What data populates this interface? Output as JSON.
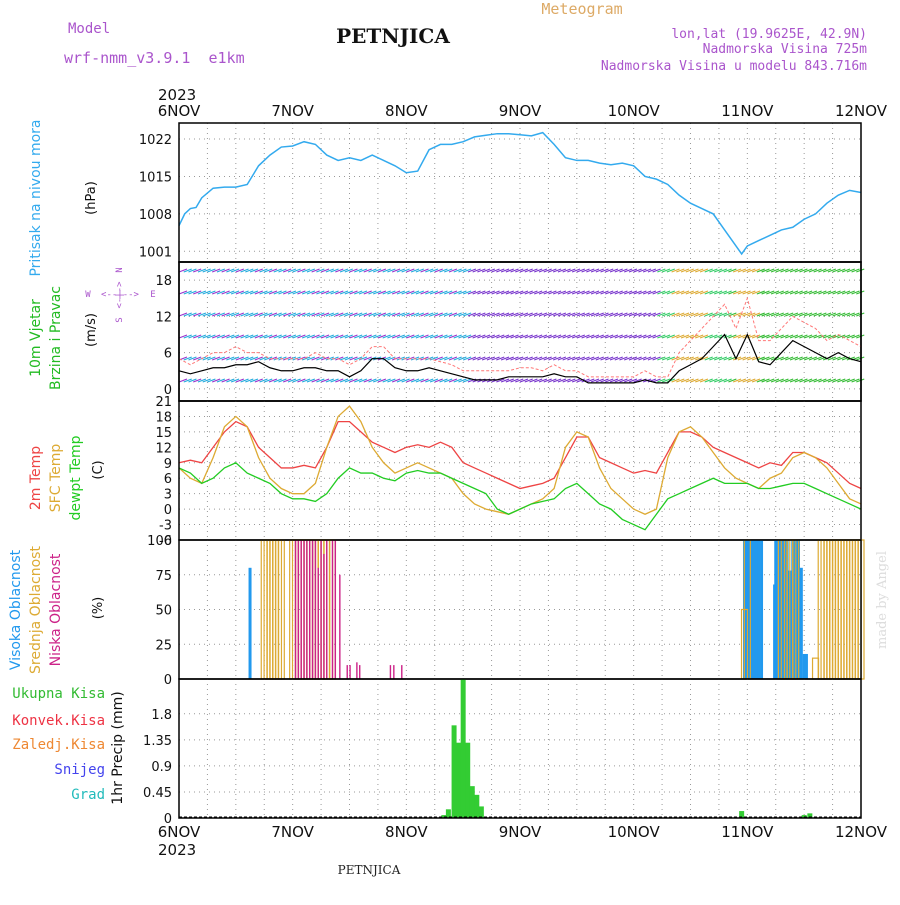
{
  "header": {
    "model_label": "Model",
    "model_name": "wrf-nmm_v3.9.1  e1km",
    "station": "PETNJICA",
    "meteogram": "Meteogram",
    "lonlat": "lon,lat (19.9625E, 42.9N)",
    "altitude": "Nadmorska Visina 725m",
    "altitude_model": "Nadmorska Visina u modelu 843.716m",
    "year": "2023",
    "footer_station": "PETNJICA",
    "credit": "made by Angel"
  },
  "colors": {
    "pressure": "#33aaee",
    "temp2m": "#ee4444",
    "sfc": "#ddaa33",
    "dewpt": "#22cc22",
    "high_cloud": "#2299ee",
    "mid_cloud": "#ddaa33",
    "low_cloud": "#cc2288",
    "precip": "#33cc33",
    "wind_speed": "#000000",
    "gust": "#ff7777"
  },
  "time_axis": {
    "days": [
      "6NOV",
      "7NOV",
      "8NOV",
      "9NOV",
      "10NOV",
      "11NOV",
      "12NOV"
    ]
  },
  "panels": {
    "pressure": {
      "ylabel": "Pritisak na nivou mora",
      "unit": "(hPa)"
    },
    "wind": {
      "ylabel1": "10m Vjetar",
      "ylabel2": "Brzina i Pravac",
      "unit": "(m/s)",
      "compass_n": "N",
      "compass_s": "S",
      "compass_w": "W",
      "compass_e": "E",
      "compass_arrow_v": "<-|->",
      "compass_arrow_h": "<--|-->"
    },
    "temp": {
      "ylabel1": "2m Temp",
      "ylabel2": "SFC Temp",
      "ylabel3": "dewpt Temp",
      "unit": "(C)"
    },
    "cloud": {
      "ylabel1": "Visoka Oblacnost",
      "ylabel2": "Srednja Oblacnost",
      "ylabel3": "Niska Oblacnost",
      "unit": "(%)"
    },
    "precip": {
      "ylabel": "1hr Precip (mm)",
      "legend": [
        "Ukupna Kisa",
        "Konvek.Kisa",
        "Zaledj.Kisa",
        "Snijeg",
        "Grad"
      ],
      "legend_colors": [
        "#33bb33",
        "#ee3344",
        "#ee8833",
        "#4444ee",
        "#22bbbb"
      ]
    }
  },
  "chart_data": [
    {
      "type": "line",
      "title": "",
      "ylabel": "Pritisak na nivou mora (hPa)",
      "ylim": [
        999,
        1025
      ],
      "yticks": [
        1001,
        1008,
        1015,
        1022
      ],
      "grid": true,
      "x": [
        0,
        0.05,
        0.1,
        0.15,
        0.2,
        0.3,
        0.4,
        0.5,
        0.6,
        0.7,
        0.8,
        0.9,
        1.0,
        1.1,
        1.2,
        1.3,
        1.4,
        1.5,
        1.6,
        1.7,
        1.8,
        1.9,
        2.0,
        2.1,
        2.2,
        2.3,
        2.4,
        2.5,
        2.6,
        2.7,
        2.8,
        2.9,
        3.0,
        3.1,
        3.2,
        3.3,
        3.4,
        3.5,
        3.6,
        3.7,
        3.8,
        3.9,
        4.0,
        4.1,
        4.2,
        4.3,
        4.4,
        4.5,
        4.6,
        4.7,
        4.8,
        4.9,
        4.95,
        5.0,
        5.1,
        5.2,
        5.3,
        5.4,
        5.5,
        5.6,
        5.7,
        5.8,
        5.9,
        6.0
      ],
      "series": [
        {
          "values": [
            1005.8,
            1008,
            1009,
            1009.2,
            1011,
            1012.8,
            1013,
            1013,
            1013.5,
            1017,
            1019,
            1020.5,
            1020.7,
            1021.5,
            1021,
            1019,
            1018,
            1018.5,
            1018,
            1019,
            1018,
            1017,
            1015.7,
            1016,
            1020,
            1021,
            1021,
            1021.5,
            1022.4,
            1022.7,
            1023,
            1023,
            1022.8,
            1022.6,
            1023.2,
            1021,
            1018.5,
            1018,
            1018,
            1017.5,
            1017.2,
            1017.5,
            1017,
            1015,
            1014.5,
            1013.5,
            1011.5,
            1010,
            1009,
            1008,
            1005,
            1002,
            1000.5,
            1002,
            1003,
            1004,
            1005,
            1005.5,
            1007,
            1008,
            1010,
            1011.5,
            1012.4,
            1012
          ]
        }
      ]
    },
    {
      "type": "line",
      "title": "",
      "ylabel": "10m Vjetar Brzina i Pravac (m/s)",
      "ylim": [
        -2,
        21
      ],
      "yticks": [
        0,
        6,
        12,
        18
      ],
      "grid": true,
      "x": [
        0,
        0.1,
        0.2,
        0.3,
        0.4,
        0.5,
        0.6,
        0.7,
        0.8,
        0.9,
        1.0,
        1.1,
        1.2,
        1.3,
        1.4,
        1.5,
        1.6,
        1.7,
        1.8,
        1.9,
        2.0,
        2.1,
        2.2,
        2.3,
        2.4,
        2.5,
        2.6,
        2.7,
        2.8,
        2.9,
        3.0,
        3.1,
        3.2,
        3.3,
        3.4,
        3.5,
        3.6,
        3.7,
        3.8,
        3.9,
        4.0,
        4.1,
        4.2,
        4.3,
        4.4,
        4.5,
        4.6,
        4.7,
        4.8,
        4.9,
        5.0,
        5.1,
        5.2,
        5.3,
        5.4,
        5.5,
        5.6,
        5.7,
        5.8,
        5.9,
        6.0
      ],
      "series": [
        {
          "values": [
            3,
            2.5,
            3,
            3.5,
            3.5,
            4,
            4,
            4.5,
            3.5,
            3,
            3,
            3.5,
            3.5,
            3,
            3,
            2,
            3,
            5,
            5,
            3.5,
            3,
            3,
            3.5,
            3,
            2.5,
            2,
            1.5,
            1.5,
            1.5,
            2,
            2,
            2,
            2,
            2.5,
            2,
            2,
            1,
            1,
            1,
            1,
            1,
            1.5,
            1,
            1,
            3,
            4,
            5,
            7,
            9,
            5,
            9,
            4.5,
            4,
            6,
            8,
            7,
            6,
            5,
            6,
            5,
            4.5
          ]
        },
        {
          "values": [
            5,
            4,
            5,
            6,
            6,
            7,
            6,
            6,
            5,
            5,
            5,
            5,
            6,
            5,
            5,
            4,
            5,
            7,
            7,
            5,
            5,
            5,
            5,
            4.5,
            4,
            3,
            3,
            3,
            3,
            3,
            3.5,
            3.5,
            3,
            4,
            3,
            3,
            2,
            2,
            2,
            2,
            2,
            3,
            2,
            2,
            6,
            8,
            10,
            12,
            14,
            10,
            15,
            8,
            8,
            10,
            12,
            11,
            10,
            8,
            9,
            8,
            7
          ]
        }
      ]
    },
    {
      "type": "line",
      "title": "",
      "ylabel": "2m Temp / SFC Temp / dewpt Temp (C)",
      "ylim": [
        -6,
        21
      ],
      "yticks": [
        -6,
        -3,
        0,
        3,
        6,
        9,
        12,
        15,
        18,
        21
      ],
      "grid": true,
      "x": [
        0,
        0.1,
        0.2,
        0.3,
        0.4,
        0.5,
        0.6,
        0.7,
        0.8,
        0.9,
        1.0,
        1.1,
        1.2,
        1.3,
        1.4,
        1.5,
        1.6,
        1.7,
        1.8,
        1.9,
        2.0,
        2.1,
        2.2,
        2.3,
        2.4,
        2.5,
        2.6,
        2.7,
        2.8,
        2.9,
        3.0,
        3.1,
        3.2,
        3.3,
        3.4,
        3.5,
        3.6,
        3.7,
        3.8,
        3.9,
        4.0,
        4.1,
        4.2,
        4.3,
        4.4,
        4.5,
        4.6,
        4.7,
        4.8,
        4.9,
        5.0,
        5.1,
        5.2,
        5.3,
        5.4,
        5.5,
        5.6,
        5.7,
        5.8,
        5.9,
        6.0
      ],
      "series": [
        {
          "name": "2m Temp",
          "values": [
            9,
            9.5,
            9,
            12,
            15,
            17,
            16,
            12,
            10,
            8,
            8,
            8.5,
            8,
            12,
            17,
            17,
            15,
            13,
            12,
            11,
            12,
            12.5,
            12,
            13,
            12,
            9,
            8,
            7,
            6,
            5,
            4,
            4.5,
            5,
            6,
            10,
            14,
            14,
            10,
            9,
            8,
            7,
            7.5,
            7,
            11,
            15,
            15,
            14,
            12,
            11,
            10,
            9,
            8,
            9,
            8.5,
            11,
            11,
            10,
            9,
            7,
            5,
            4
          ]
        },
        {
          "name": "SFC Temp",
          "values": [
            8,
            6,
            5,
            10,
            16,
            18,
            16,
            10,
            6,
            4,
            3,
            3,
            5,
            12,
            18,
            20,
            17,
            12,
            9,
            7,
            8,
            9,
            8,
            7,
            6,
            3,
            1,
            0,
            -0.5,
            -1,
            0,
            1,
            2,
            4,
            12,
            15,
            14,
            8,
            4,
            2,
            0,
            -1,
            0,
            10,
            15,
            16,
            14,
            11,
            8,
            6,
            5,
            4,
            6,
            7,
            10,
            11,
            10,
            8,
            5,
            2,
            1
          ]
        },
        {
          "name": "dewpt Temp",
          "values": [
            8,
            7,
            5,
            6,
            8,
            9,
            7,
            6,
            5,
            3,
            2,
            2,
            1.5,
            3,
            6,
            8,
            7,
            7,
            6,
            5.5,
            7,
            7.5,
            7,
            7,
            6,
            5,
            4,
            3,
            0,
            -1,
            0,
            1,
            1.5,
            2,
            4,
            5,
            3,
            1,
            0,
            -2,
            -3,
            -4,
            -1,
            2,
            3,
            4,
            5,
            6,
            5,
            5,
            5,
            4,
            4,
            4.5,
            5,
            5,
            4,
            3,
            2,
            1,
            0
          ]
        }
      ]
    },
    {
      "type": "bar",
      "title": "",
      "ylabel": "Visoka / Srednja / Niska Oblacnost (%)",
      "ylim": [
        0,
        100
      ],
      "yticks": [
        0,
        25,
        50,
        75,
        100
      ],
      "grid": true,
      "x_start": 0,
      "x_step": 0.04166667,
      "series": [
        {
          "name": "Visoka Oblacnost",
          "bars": [
            [
              1.25,
              80
            ],
            [
              10.48,
              68
            ],
            [
              10.5,
              100
            ],
            [
              10.55,
              100
            ],
            [
              10.6,
              100
            ],
            [
              10.65,
              100
            ],
            [
              10.7,
              100
            ],
            [
              10.75,
              78
            ],
            [
              10.8,
              100
            ],
            [
              10.85,
              100
            ],
            [
              10.9,
              100
            ],
            [
              10.95,
              80
            ],
            [
              11.0,
              18
            ],
            [
              11.04,
              18
            ],
            [
              9.95,
              100
            ],
            [
              10.0,
              100
            ],
            [
              10.04,
              100
            ],
            [
              10.08,
              100
            ],
            [
              10.12,
              100
            ],
            [
              10.16,
              100
            ],
            [
              10.2,
              100
            ],
            [
              10.25,
              100
            ]
          ]
        },
        {
          "name": "Srednja Oblacnost",
          "bars": [
            [
              1.5,
              100
            ],
            [
              1.55,
              100
            ],
            [
              1.6,
              100
            ],
            [
              1.65,
              100
            ],
            [
              1.7,
              100
            ],
            [
              1.75,
              100
            ],
            [
              1.8,
              100
            ],
            [
              2.0,
              100
            ],
            [
              2.05,
              100
            ],
            [
              2.1,
              100
            ],
            [
              2.15,
              100
            ],
            [
              2.2,
              100
            ],
            [
              2.25,
              100
            ],
            [
              2.3,
              100
            ],
            [
              2.35,
              100
            ],
            [
              2.4,
              100
            ],
            [
              2.45,
              100
            ],
            [
              2.5,
              100
            ],
            [
              2.55,
              100
            ],
            [
              2.6,
              100
            ],
            [
              2.65,
              100
            ],
            [
              2.7,
              100
            ],
            [
              9.95,
              50
            ],
            [
              10.0,
              100
            ],
            [
              10.6,
              100
            ],
            [
              10.65,
              100
            ],
            [
              10.75,
              100
            ],
            [
              10.8,
              100
            ],
            [
              10.85,
              100
            ],
            [
              11.2,
              15
            ],
            [
              11.3,
              100
            ],
            [
              11.35,
              100
            ],
            [
              11.4,
              100
            ],
            [
              11.45,
              100
            ],
            [
              11.5,
              100
            ],
            [
              11.55,
              100
            ],
            [
              11.6,
              100
            ],
            [
              11.65,
              100
            ],
            [
              11.7,
              100
            ],
            [
              11.75,
              100
            ],
            [
              11.8,
              100
            ],
            [
              11.85,
              100
            ],
            [
              11.9,
              100
            ],
            [
              11.95,
              100
            ],
            [
              12.0,
              100
            ]
          ]
        },
        {
          "name": "Niska Oblacnost",
          "bars": [
            [
              2.05,
              100
            ],
            [
              2.1,
              100
            ],
            [
              2.15,
              100
            ],
            [
              2.2,
              100
            ],
            [
              2.25,
              100
            ],
            [
              2.3,
              100
            ],
            [
              2.35,
              100
            ],
            [
              2.4,
              100
            ],
            [
              2.45,
              80
            ],
            [
              2.5,
              100
            ],
            [
              2.55,
              90
            ],
            [
              2.6,
              100
            ],
            [
              2.7,
              100
            ],
            [
              2.75,
              100
            ],
            [
              2.83,
              75
            ],
            [
              2.96,
              10
            ],
            [
              3.01,
              10
            ],
            [
              3.13,
              12
            ],
            [
              3.18,
              10
            ],
            [
              3.72,
              10
            ],
            [
              3.78,
              10
            ],
            [
              3.92,
              10
            ]
          ]
        }
      ]
    },
    {
      "type": "bar",
      "title": "",
      "ylabel": "1hr Precip (mm)",
      "ylim": [
        0,
        2.4
      ],
      "yticks": [
        0,
        0.45,
        0.9,
        1.35,
        1.8
      ],
      "grid": true,
      "series": [
        {
          "name": "Ukupna Kisa",
          "bars": [
            [
              2.33,
              0.05
            ],
            [
              2.37,
              0.15
            ],
            [
              2.42,
              1.6
            ],
            [
              2.46,
              1.3
            ],
            [
              2.5,
              2.4
            ],
            [
              2.54,
              1.3
            ],
            [
              2.58,
              0.55
            ],
            [
              2.62,
              0.4
            ],
            [
              2.66,
              0.2
            ],
            [
              4.95,
              0.12
            ],
            [
              5.5,
              0.05
            ],
            [
              5.55,
              0.08
            ]
          ]
        }
      ]
    }
  ]
}
